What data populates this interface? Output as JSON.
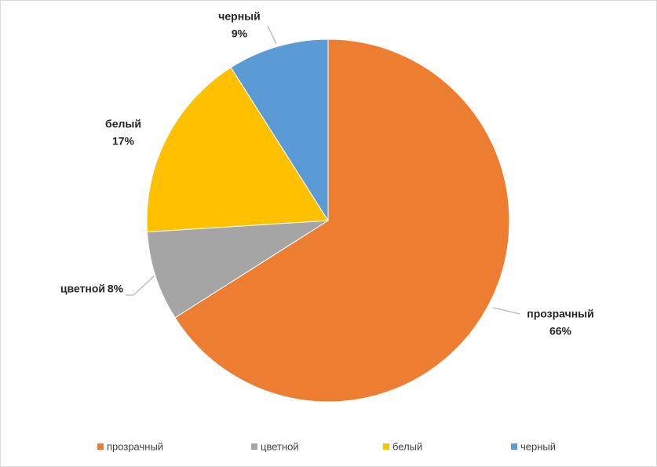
{
  "chart_data": {
    "type": "pie",
    "categories": [
      "прозрачный",
      "цветной",
      "белый",
      "черный"
    ],
    "values": [
      66,
      8,
      17,
      9
    ],
    "value_labels": [
      "66%",
      "8%",
      "17%",
      "9%"
    ],
    "colors": [
      "#ed7d31",
      "#a5a5a5",
      "#ffc000",
      "#5b9bd5"
    ],
    "legend": "bottom"
  }
}
